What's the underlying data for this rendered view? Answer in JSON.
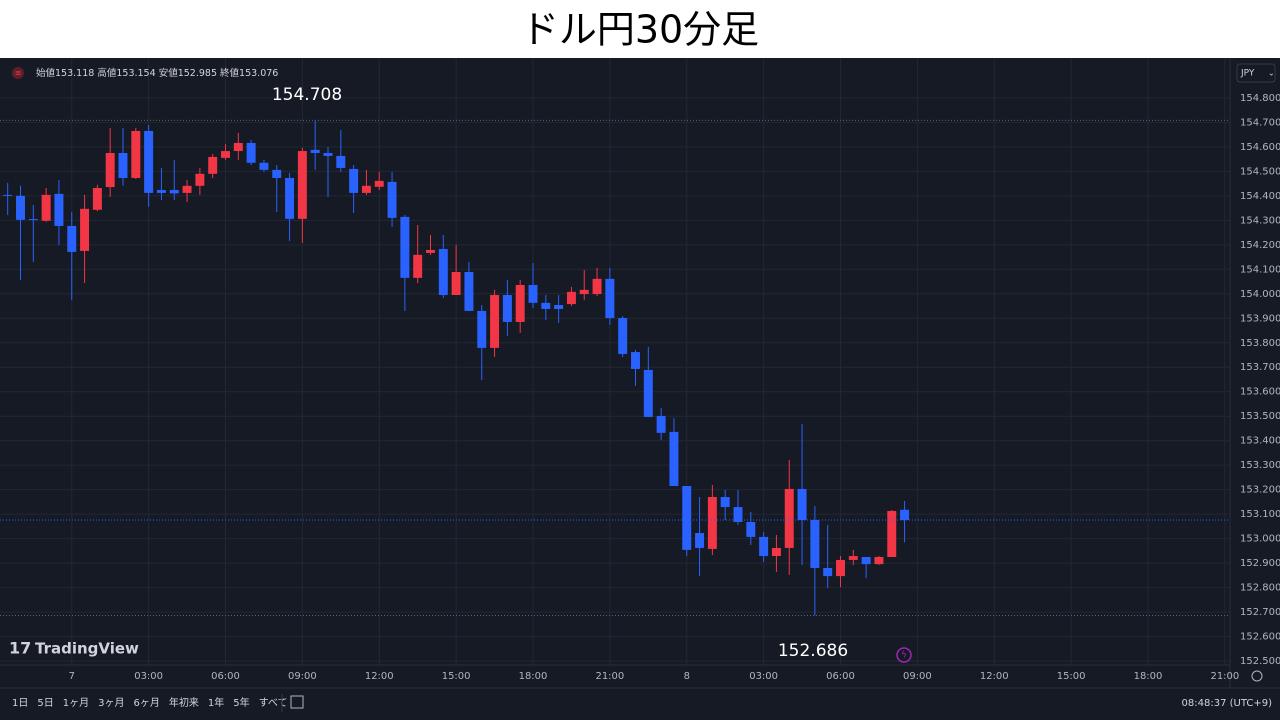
{
  "title": "ドル円30分足",
  "chart_data": {
    "type": "candlestick",
    "currency": "JPY",
    "watermark": "TradingView",
    "ohlc_legend": {
      "open_label": "始値",
      "open": 153.118,
      "high_label": "高値",
      "high": 153.154,
      "low_label": "安値",
      "low": 152.985,
      "close_label": "終値",
      "close": 153.076
    },
    "annotations": [
      154.708,
      152.686
    ],
    "up_color": "#f23645",
    "down_color": "#2962ff",
    "x": [
      -2.5,
      -2,
      -1.5,
      -1,
      -0.5,
      0,
      0.5,
      1,
      1.5,
      2,
      2.5,
      3,
      3.5,
      4,
      4.5,
      5,
      5.5,
      6,
      6.5,
      7,
      7.5,
      8,
      8.5,
      9,
      9.5,
      10,
      10.5,
      11,
      11.5,
      12,
      12.5,
      13,
      13.5,
      14,
      14.5,
      15,
      15.5,
      16,
      16.5,
      17,
      17.5,
      18,
      18.5,
      19,
      19.5,
      20,
      20.5,
      21,
      21.5,
      22,
      22.5,
      23,
      23.5,
      24,
      24.5,
      25,
      25.5,
      26,
      26.5,
      27,
      27.5,
      28,
      28.5,
      29,
      29.5,
      30,
      30.5,
      31,
      31.5,
      32,
      32.5
    ],
    "open": [
      154.404,
      154.4,
      154.305,
      154.298,
      154.408,
      154.277,
      154.175,
      154.343,
      154.436,
      154.575,
      154.473,
      154.665,
      154.424,
      154.424,
      154.412,
      154.441,
      154.49,
      154.555,
      154.583,
      154.616,
      154.535,
      154.506,
      154.473,
      154.306,
      154.588,
      154.575,
      154.563,
      154.51,
      154.412,
      154.437,
      154.457,
      154.314,
      154.065,
      154.167,
      154.183,
      153.995,
      154.089,
      153.93,
      153.779,
      153.995,
      153.885,
      154.036,
      153.963,
      153.954,
      153.958,
      153.999,
      153.999,
      154.061,
      153.901,
      153.762,
      153.689,
      153.501,
      153.436,
      153.215,
      153.023,
      152.958,
      153.17,
      153.129,
      153.068,
      153.007,
      152.929,
      152.962,
      153.203,
      153.076,
      152.88,
      152.847,
      152.913,
      152.925,
      152.896,
      152.925,
      153.118
    ],
    "high": [
      154.453,
      154.441,
      154.363,
      154.432,
      154.465,
      154.334,
      154.404,
      154.445,
      154.677,
      154.677,
      154.677,
      154.69,
      154.514,
      154.547,
      154.465,
      154.514,
      154.571,
      154.612,
      154.657,
      154.628,
      154.547,
      154.526,
      154.494,
      154.596,
      154.708,
      154.6,
      154.669,
      154.526,
      154.506,
      154.498,
      154.498,
      154.322,
      154.281,
      154.24,
      154.24,
      154.2,
      154.13,
      153.954,
      154.016,
      154.057,
      154.057,
      154.126,
      153.995,
      153.995,
      154.028,
      154.097,
      154.106,
      154.106,
      153.909,
      153.771,
      153.783,
      153.534,
      153.493,
      153.215,
      153.17,
      153.219,
      153.199,
      153.199,
      153.109,
      153.027,
      153.015,
      153.321,
      153.468,
      153.133,
      153.056,
      152.929,
      152.954,
      152.925,
      152.929,
      153.117,
      153.154
    ],
    "low": [
      154.322,
      154.057,
      154.13,
      154.294,
      154.2,
      153.975,
      154.044,
      154.337,
      154.396,
      154.441,
      154.469,
      154.355,
      154.383,
      154.383,
      154.375,
      154.404,
      154.473,
      154.547,
      154.547,
      154.526,
      154.498,
      154.334,
      154.216,
      154.208,
      154.506,
      154.396,
      154.498,
      154.33,
      154.404,
      154.424,
      154.273,
      153.93,
      154.044,
      154.159,
      153.983,
      153.995,
      153.93,
      153.648,
      153.742,
      153.828,
      153.84,
      153.942,
      153.893,
      153.881,
      153.95,
      153.975,
      153.991,
      153.873,
      153.742,
      153.624,
      153.497,
      153.403,
      153.215,
      152.929,
      152.847,
      152.933,
      153.076,
      153.056,
      152.974,
      152.905,
      152.864,
      152.852,
      152.892,
      152.686,
      152.798,
      152.802,
      152.892,
      152.839,
      152.892,
      152.925,
      152.985
    ],
    "close": [
      154.404,
      154.302,
      154.305,
      154.404,
      154.277,
      154.171,
      154.347,
      154.432,
      154.575,
      154.473,
      154.665,
      154.412,
      154.412,
      154.41,
      154.441,
      154.49,
      154.559,
      154.583,
      154.616,
      154.535,
      154.506,
      154.473,
      154.306,
      154.583,
      154.575,
      154.563,
      154.514,
      154.412,
      154.441,
      154.461,
      154.31,
      154.065,
      154.159,
      154.179,
      153.995,
      154.089,
      153.93,
      153.779,
      153.995,
      153.885,
      154.036,
      153.963,
      153.938,
      153.938,
      154.008,
      154.016,
      154.061,
      153.901,
      153.754,
      153.693,
      153.497,
      153.432,
      153.215,
      152.954,
      152.962,
      153.17,
      153.129,
      153.068,
      153.007,
      152.929,
      152.962,
      153.203,
      153.076,
      152.88,
      152.847,
      152.913,
      152.929,
      152.896,
      152.925,
      153.113,
      153.076
    ],
    "xlim": [
      -2.8,
      45.2
    ],
    "xticks": [
      {
        "value": 0,
        "label": "7"
      },
      {
        "value": 3,
        "label": "03:00"
      },
      {
        "value": 6,
        "label": "06:00"
      },
      {
        "value": 9,
        "label": "09:00"
      },
      {
        "value": 12,
        "label": "12:00"
      },
      {
        "value": 15,
        "label": "15:00"
      },
      {
        "value": 18,
        "label": "18:00"
      },
      {
        "value": 21,
        "label": "21:00"
      },
      {
        "value": 24,
        "label": "8"
      },
      {
        "value": 27,
        "label": "03:00"
      },
      {
        "value": 30,
        "label": "06:00"
      },
      {
        "value": 33,
        "label": "09:00"
      },
      {
        "value": 36,
        "label": "12:00"
      },
      {
        "value": 39,
        "label": "15:00"
      },
      {
        "value": 42,
        "label": "18:00"
      },
      {
        "value": 45,
        "label": "21:00"
      }
    ],
    "ylim": [
      152.39,
      154.963
    ],
    "yticks": [
      {
        "value": 152.5,
        "label": "152.500"
      },
      {
        "value": 152.6,
        "label": "152.600"
      },
      {
        "value": 152.7,
        "label": "152.700"
      },
      {
        "value": 152.8,
        "label": "152.800"
      },
      {
        "value": 152.9,
        "label": "152.900"
      },
      {
        "value": 153.0,
        "label": "153.000"
      },
      {
        "value": 153.1,
        "label": "153.100"
      },
      {
        "value": 153.2,
        "label": "153.200"
      },
      {
        "value": 153.3,
        "label": "153.300"
      },
      {
        "value": 153.4,
        "label": "153.400"
      },
      {
        "value": 153.5,
        "label": "153.500"
      },
      {
        "value": 153.6,
        "label": "153.600"
      },
      {
        "value": 153.7,
        "label": "153.700"
      },
      {
        "value": 153.8,
        "label": "153.800"
      },
      {
        "value": 153.9,
        "label": "153.900"
      },
      {
        "value": 154.0,
        "label": "154.000"
      },
      {
        "value": 154.1,
        "label": "154.100"
      },
      {
        "value": 154.2,
        "label": "154.200"
      },
      {
        "value": 154.3,
        "label": "154.300"
      },
      {
        "value": 154.4,
        "label": "154.400"
      },
      {
        "value": 154.5,
        "label": "154.500"
      },
      {
        "value": 154.6,
        "label": "154.600"
      },
      {
        "value": 154.7,
        "label": "154.700"
      },
      {
        "value": 154.8,
        "label": "154.800"
      }
    ],
    "grid": true
  },
  "toolbar": {
    "ranges": [
      "1日",
      "5日",
      "1ヶ月",
      "3ヶ月",
      "6ヶ月",
      "年初来",
      "1年",
      "5年",
      "すべて"
    ],
    "clock": "08:48:37 (UTC+9)"
  }
}
